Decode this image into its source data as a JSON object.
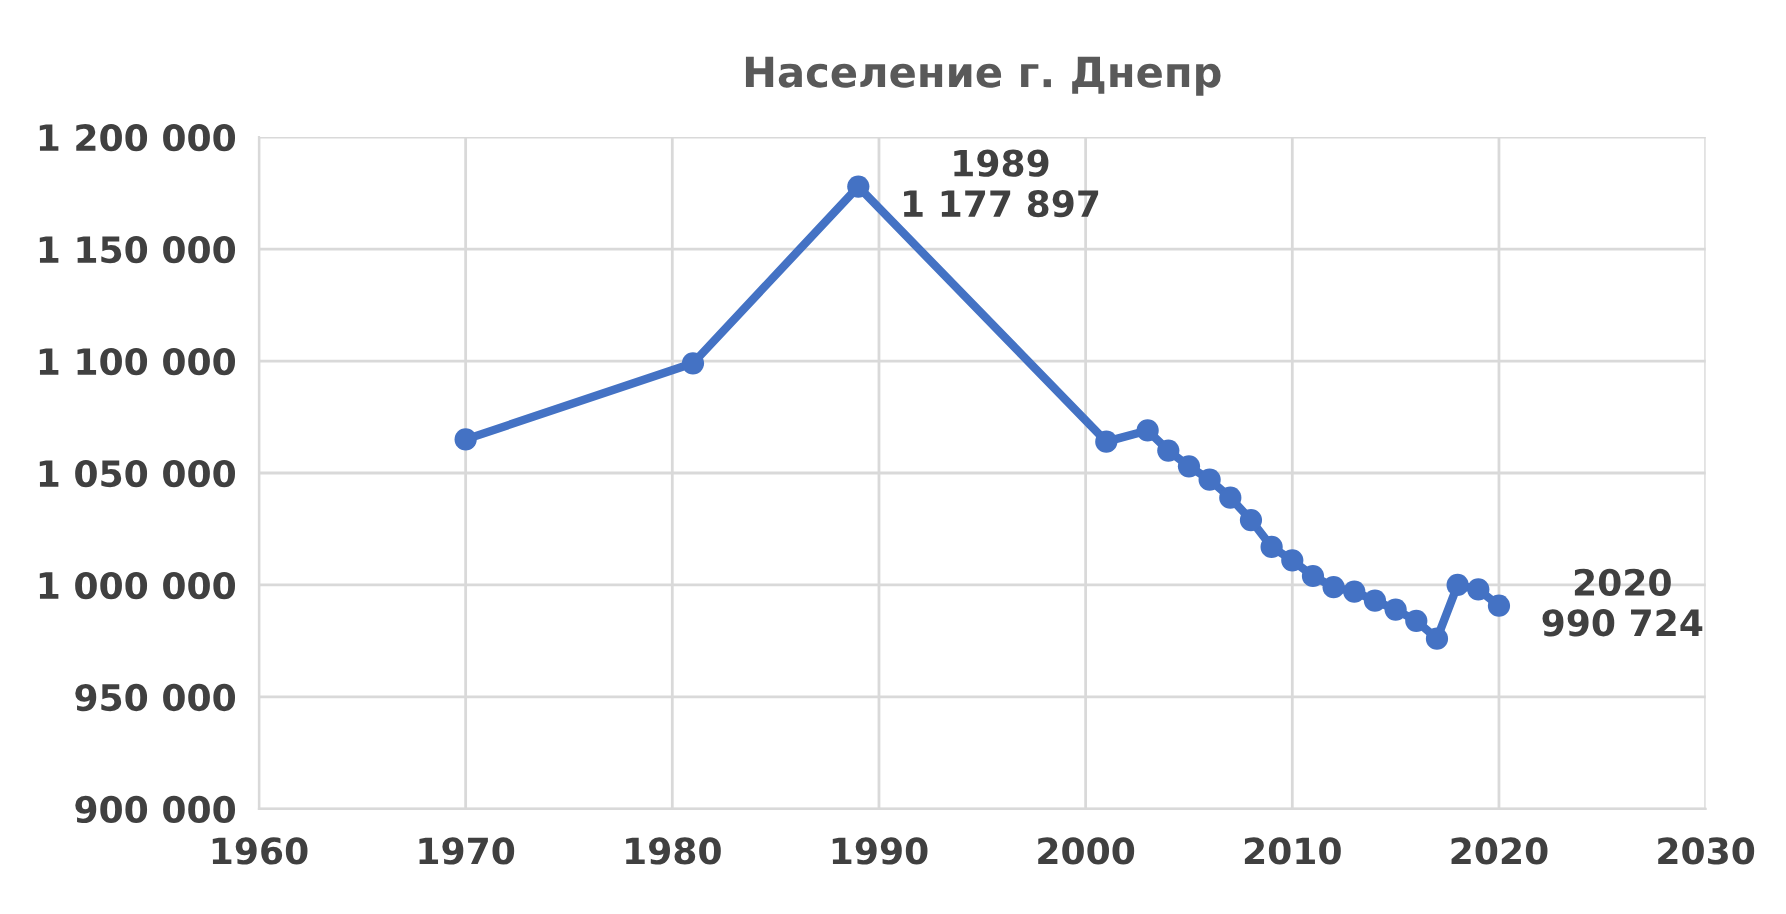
{
  "chart_data": {
    "type": "line",
    "title": "Население г. Днепр",
    "x": [
      1970,
      1981,
      1989,
      2001,
      2003,
      2004,
      2005,
      2006,
      2007,
      2008,
      2009,
      2010,
      2011,
      2012,
      2013,
      2014,
      2015,
      2016,
      2017,
      2018,
      2019,
      2020
    ],
    "series": [
      {
        "color": "#4472c4",
        "values": [
          1065000,
          1099000,
          1177897,
          1064000,
          1069000,
          1060000,
          1053000,
          1047000,
          1039000,
          1029000,
          1017000,
          1011000,
          1004000,
          999000,
          997000,
          993000,
          989000,
          984000,
          976000,
          1000000,
          998000,
          990724
        ]
      }
    ],
    "xlim": [
      1960,
      2030
    ],
    "xticks": [
      1960,
      1970,
      1980,
      1990,
      2000,
      2010,
      2020,
      2030
    ],
    "ylim": [
      900000,
      1200000
    ],
    "yticks": [
      {
        "value": 900000,
        "label": "900 000"
      },
      {
        "value": 950000,
        "label": "950 000"
      },
      {
        "value": 1000000,
        "label": "1 000 000"
      },
      {
        "value": 1050000,
        "label": "1 050 000"
      },
      {
        "value": 1100000,
        "label": "1 100 000"
      },
      {
        "value": 1150000,
        "label": "1 150 000"
      },
      {
        "value": 1200000,
        "label": "1 200 000"
      }
    ],
    "annotations": [
      {
        "text": "1989\n1 177 897",
        "x": 1989,
        "y": 1177897
      },
      {
        "text": "2020\n990 724",
        "x": 2020,
        "y": 990724
      }
    ],
    "grid": true,
    "marker": "circle",
    "line_style": "solid"
  }
}
